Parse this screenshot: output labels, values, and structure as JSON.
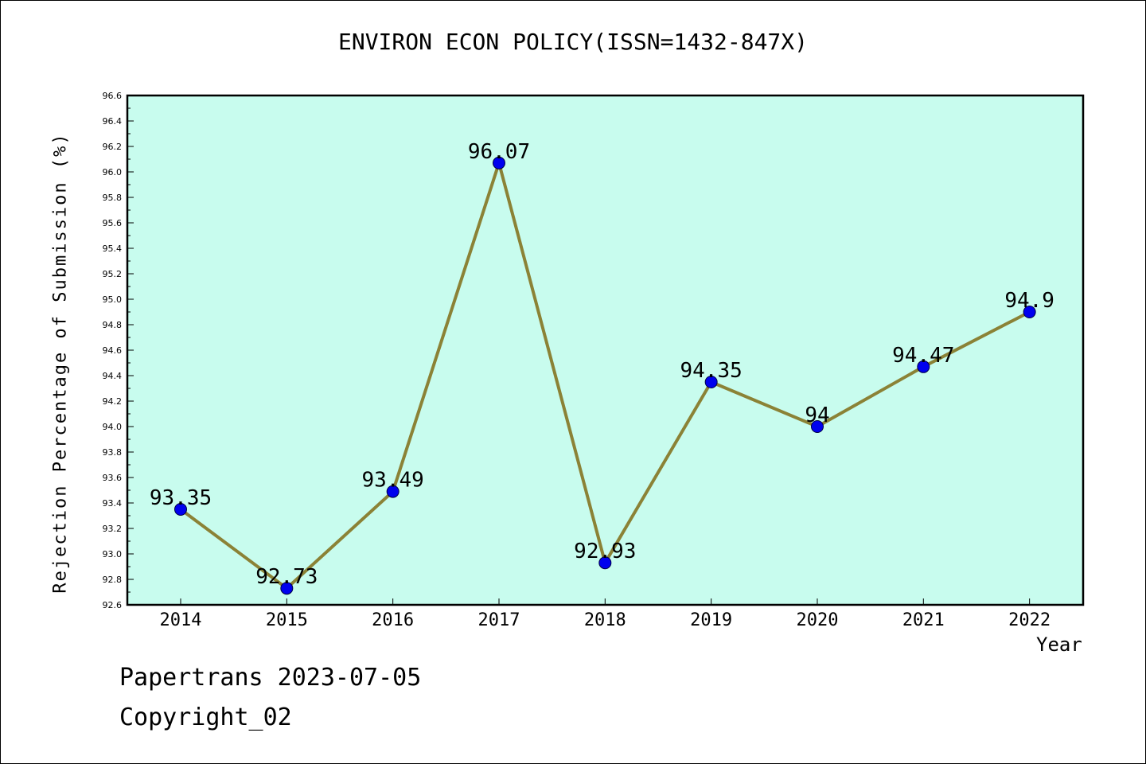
{
  "chart_data": {
    "type": "line",
    "title": "ENVIRON ECON POLICY(ISSN=1432-847X)",
    "xlabel": "Year",
    "ylabel": "Rejection Percentage of Submission (%)",
    "categories": [
      "2014",
      "2015",
      "2016",
      "2017",
      "2018",
      "2019",
      "2020",
      "2021",
      "2022"
    ],
    "series": [
      {
        "values": [
          93.35,
          92.73,
          93.49,
          96.07,
          92.93,
          94.35,
          94.0,
          94.47,
          94.9
        ],
        "labels": [
          "93.35",
          "92.73",
          "93.49",
          "96.07",
          "92.93",
          "94.35",
          "94",
          "94.47",
          "94.9"
        ]
      }
    ],
    "ylim": [
      92.6,
      96.6
    ],
    "yticks": [
      "92.6",
      "92.8",
      "93.0",
      "93.2",
      "93.4",
      "93.6",
      "93.8",
      "94.0",
      "94.2",
      "94.4",
      "94.6",
      "94.8",
      "95.0",
      "95.2",
      "95.4",
      "95.6",
      "95.8",
      "96.0",
      "96.2",
      "96.4",
      "96.6"
    ],
    "grid": false,
    "colors": {
      "plot_background": "#c8fcee",
      "line": "#8b8236",
      "marker": "#0000ee"
    }
  },
  "footer": {
    "line1": "Papertrans 2023-07-05",
    "line2": "Copyright_02"
  }
}
